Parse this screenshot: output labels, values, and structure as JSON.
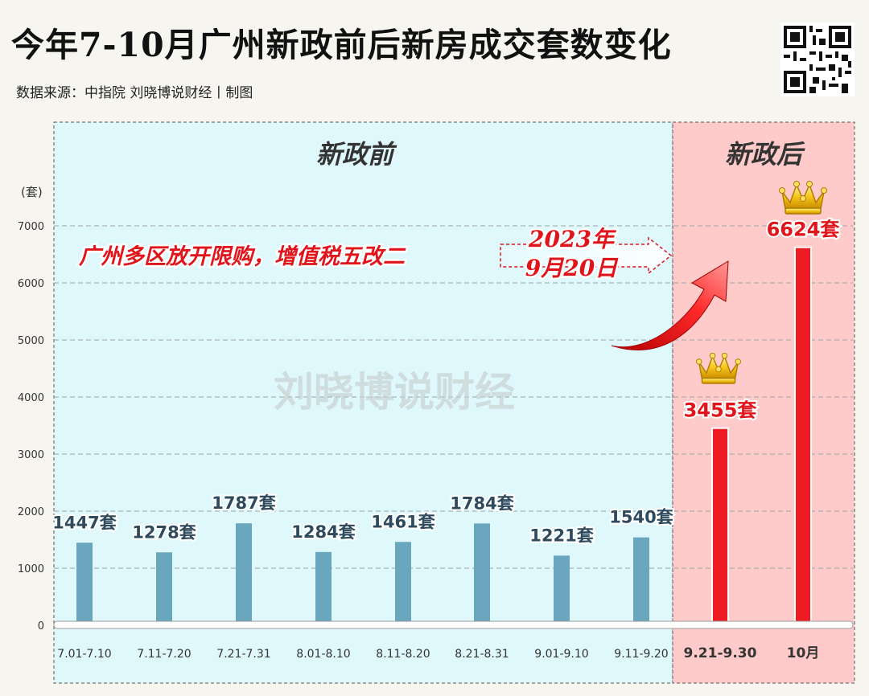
{
  "title": "今年7-10月广州新政前后新房成交套数变化",
  "source": "数据来源：中指院    刘晓博说财经丨制图",
  "watermark": "刘晓博说财经",
  "annotation": {
    "text": "广州多区放开限购，增值税五改二",
    "date_line1": "2023年",
    "date_line2": "9月20日"
  },
  "colors": {
    "before_bg": "#dff8fc",
    "after_bg": "#ffcaca",
    "before_bar": "#6aa6bd",
    "after_bar": "#ee1c22",
    "accent_red": "#e0151b"
  },
  "chart_data": {
    "type": "bar",
    "title": "今年7-10月广州新政前后新房成交套数变化",
    "ylabel": "(套)",
    "xlabel": "",
    "ylim": [
      0,
      7000
    ],
    "yticks": [
      0,
      1000,
      2000,
      3000,
      4000,
      5000,
      6000,
      7000
    ],
    "grid": true,
    "unit_suffix": "套",
    "categories": [
      "7.01-7.10",
      "7.11-7.20",
      "7.21-7.31",
      "8.01-8.10",
      "8.11-8.20",
      "8.21-8.31",
      "9.01-9.10",
      "9.11-9.20",
      "9.21-9.30",
      "10月"
    ],
    "values": [
      1447,
      1278,
      1787,
      1284,
      1461,
      1784,
      1221,
      1540,
      3455,
      6624
    ],
    "periods": [
      {
        "label": "新政前",
        "start": 0,
        "end": 7
      },
      {
        "label": "新政后",
        "start": 8,
        "end": 9
      }
    ]
  }
}
